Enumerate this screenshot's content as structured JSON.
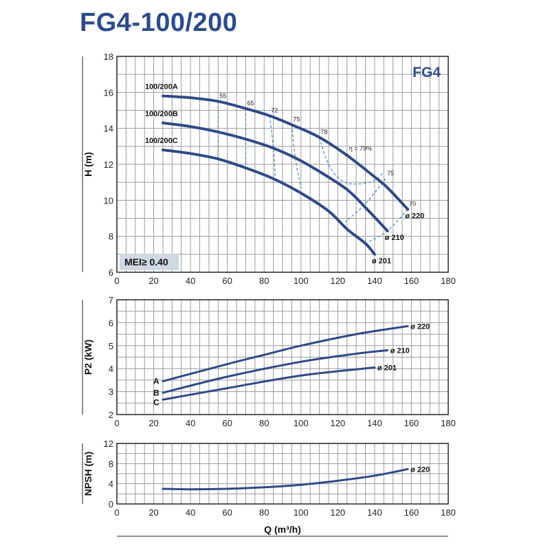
{
  "title": "FG4-100/200",
  "colors": {
    "curve": "#2e4a86",
    "eff": "#4a8fd0",
    "grid": "#9a9a9a",
    "title": "#2b4c8c"
  },
  "chart_data": [
    {
      "type": "line",
      "id": "head",
      "badge": "FG4",
      "mei_label": "MEI≥ 0.40",
      "ylabel": "H (m)",
      "xlim": [
        0,
        180
      ],
      "ylim": [
        6,
        18
      ],
      "xticks": [
        "0",
        "20",
        "40",
        "60",
        "80",
        "100",
        "120",
        "140",
        "160",
        "180"
      ],
      "yticks": [
        "6",
        "8",
        "10",
        "12",
        "14",
        "16",
        "18"
      ],
      "series": [
        {
          "name": "100/200A",
          "end_label": "ø 220",
          "x": [
            25,
            40,
            55,
            70,
            83,
            95,
            110,
            125,
            140,
            147,
            158
          ],
          "y": [
            15.8,
            15.7,
            15.5,
            15.1,
            14.7,
            14.2,
            13.5,
            12.5,
            11.3,
            10.7,
            9.5
          ]
        },
        {
          "name": "100/200B",
          "end_label": "ø 210",
          "x": [
            25,
            40,
            55,
            70,
            85,
            98,
            110,
            125,
            135,
            147
          ],
          "y": [
            14.3,
            14.1,
            13.8,
            13.4,
            12.9,
            12.3,
            11.6,
            10.6,
            9.6,
            8.3
          ]
        },
        {
          "name": "100/200C",
          "end_label": "ø 201",
          "x": [
            25,
            40,
            55,
            70,
            85,
            100,
            115,
            125,
            135,
            140
          ],
          "y": [
            12.8,
            12.6,
            12.3,
            11.8,
            11.2,
            10.4,
            9.4,
            8.4,
            7.6,
            7.0
          ]
        }
      ],
      "efficiency": [
        {
          "label": "55",
          "x": [
            55,
            55
          ],
          "y": [
            15.5,
            12.4
          ]
        },
        {
          "label": "65",
          "x": [
            70,
            70
          ],
          "y": [
            15.1,
            11.9
          ]
        },
        {
          "label": "72",
          "x": [
            83,
            85,
            86
          ],
          "y": [
            14.7,
            12.9,
            11.3
          ]
        },
        {
          "label": "75",
          "x": [
            95,
            97,
            100
          ],
          "y": [
            14.2,
            12.3,
            10.7
          ]
        },
        {
          "label": "78",
          "x": [
            110,
            115,
            122,
            130,
            140,
            145
          ],
          "y": [
            13.5,
            12.0,
            11.1,
            10.9,
            11.1,
            11.6
          ]
        },
        {
          "label": "75",
          "x": [
            146,
            135,
            124
          ],
          "y": [
            11.2,
            9.8,
            8.8
          ]
        },
        {
          "label": "70",
          "x": [
            158,
            147,
            135
          ],
          "y": [
            9.5,
            8.3,
            7.6
          ]
        }
      ],
      "bep_label": "η = 79%",
      "bep": {
        "x": 125,
        "y": 12.5
      }
    },
    {
      "type": "line",
      "id": "power",
      "ylabel": "P2 (kW)",
      "xlim": [
        0,
        180
      ],
      "ylim": [
        2,
        7
      ],
      "xticks": [
        "0",
        "20",
        "40",
        "60",
        "80",
        "100",
        "120",
        "140",
        "160",
        "180"
      ],
      "yticks": [
        "2",
        "3",
        "4",
        "5",
        "6",
        "7"
      ],
      "series": [
        {
          "name": "A",
          "end_label": "ø 220",
          "x": [
            25,
            60,
            80,
            100,
            130,
            158
          ],
          "y": [
            3.45,
            4.2,
            4.6,
            5.0,
            5.5,
            5.85
          ]
        },
        {
          "name": "B",
          "end_label": "ø 210",
          "x": [
            25,
            60,
            100,
            130,
            147
          ],
          "y": [
            2.95,
            3.65,
            4.3,
            4.65,
            4.8
          ]
        },
        {
          "name": "C",
          "end_label": "ø 201",
          "x": [
            25,
            60,
            100,
            140
          ],
          "y": [
            2.65,
            3.15,
            3.7,
            4.05
          ]
        }
      ]
    },
    {
      "type": "line",
      "id": "npsh",
      "ylabel": "NPSH (m)",
      "xlabel": "Q (m³/h)",
      "xlim": [
        0,
        180
      ],
      "ylim": [
        0,
        12
      ],
      "xticks": [
        "0",
        "20",
        "40",
        "60",
        "80",
        "100",
        "120",
        "140",
        "160",
        "180"
      ],
      "yticks": [
        "0",
        "4",
        "8",
        "12"
      ],
      "series": [
        {
          "name": "NPSH",
          "end_label": "ø 220",
          "x": [
            25,
            40,
            60,
            80,
            100,
            120,
            140,
            158
          ],
          "y": [
            3.0,
            2.9,
            3.0,
            3.3,
            3.8,
            4.6,
            5.6,
            6.9
          ]
        }
      ]
    }
  ]
}
